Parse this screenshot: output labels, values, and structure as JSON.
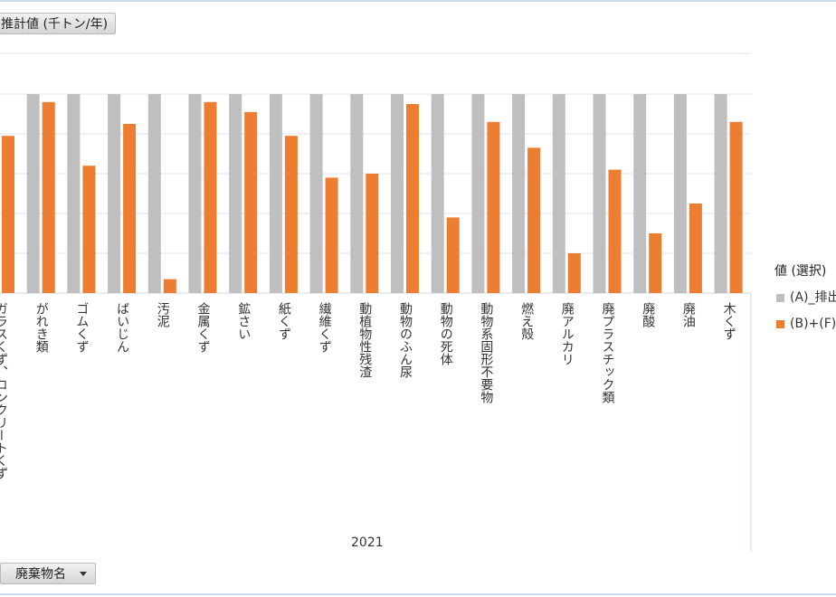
{
  "value_field": {
    "label": "推計値 (千トン/年)"
  },
  "row_field": {
    "label": "廃棄物名"
  },
  "legend": {
    "title": "値 (選択)",
    "items": [
      {
        "label": "(A)_排出",
        "color": "#bfbfbf"
      },
      {
        "label": "(B)+(F)",
        "color": "#ed7d31"
      }
    ]
  },
  "colors": {
    "gray_bar": "#bfbfbf",
    "orange_bar": "#ed7d31",
    "gridline": "#d9e4f1",
    "axis": "#c9d9ea"
  },
  "chart_data": {
    "type": "bar",
    "xlabel": "2021",
    "ylim": [
      0,
      100
    ],
    "grid": true,
    "legend_position": "right",
    "categories": [
      "ガラスくず、コンクリートくず",
      "がれき類",
      "ゴムくず",
      "ばいじん",
      "汚泥",
      "金属くず",
      "鉱さい",
      "紙くず",
      "繊維くず",
      "動植物性残渣",
      "動物のふん尿",
      "動物の死体",
      "動物系固形不要物",
      "燃え殻",
      "廃アルカリ",
      "廃プラスチック類",
      "廃酸",
      "廃油",
      "木くず"
    ],
    "series": [
      {
        "name": "(A)_排出",
        "values": [
          100,
          100,
          100,
          100,
          100,
          100,
          100,
          100,
          100,
          100,
          100,
          100,
          100,
          100,
          100,
          100,
          100,
          100,
          100
        ]
      },
      {
        "name": "(B)+(F)",
        "values": [
          79,
          96,
          64,
          85,
          7,
          96,
          91,
          79,
          58,
          60,
          95,
          38,
          86,
          73,
          20,
          62,
          30,
          45,
          86
        ]
      }
    ]
  }
}
